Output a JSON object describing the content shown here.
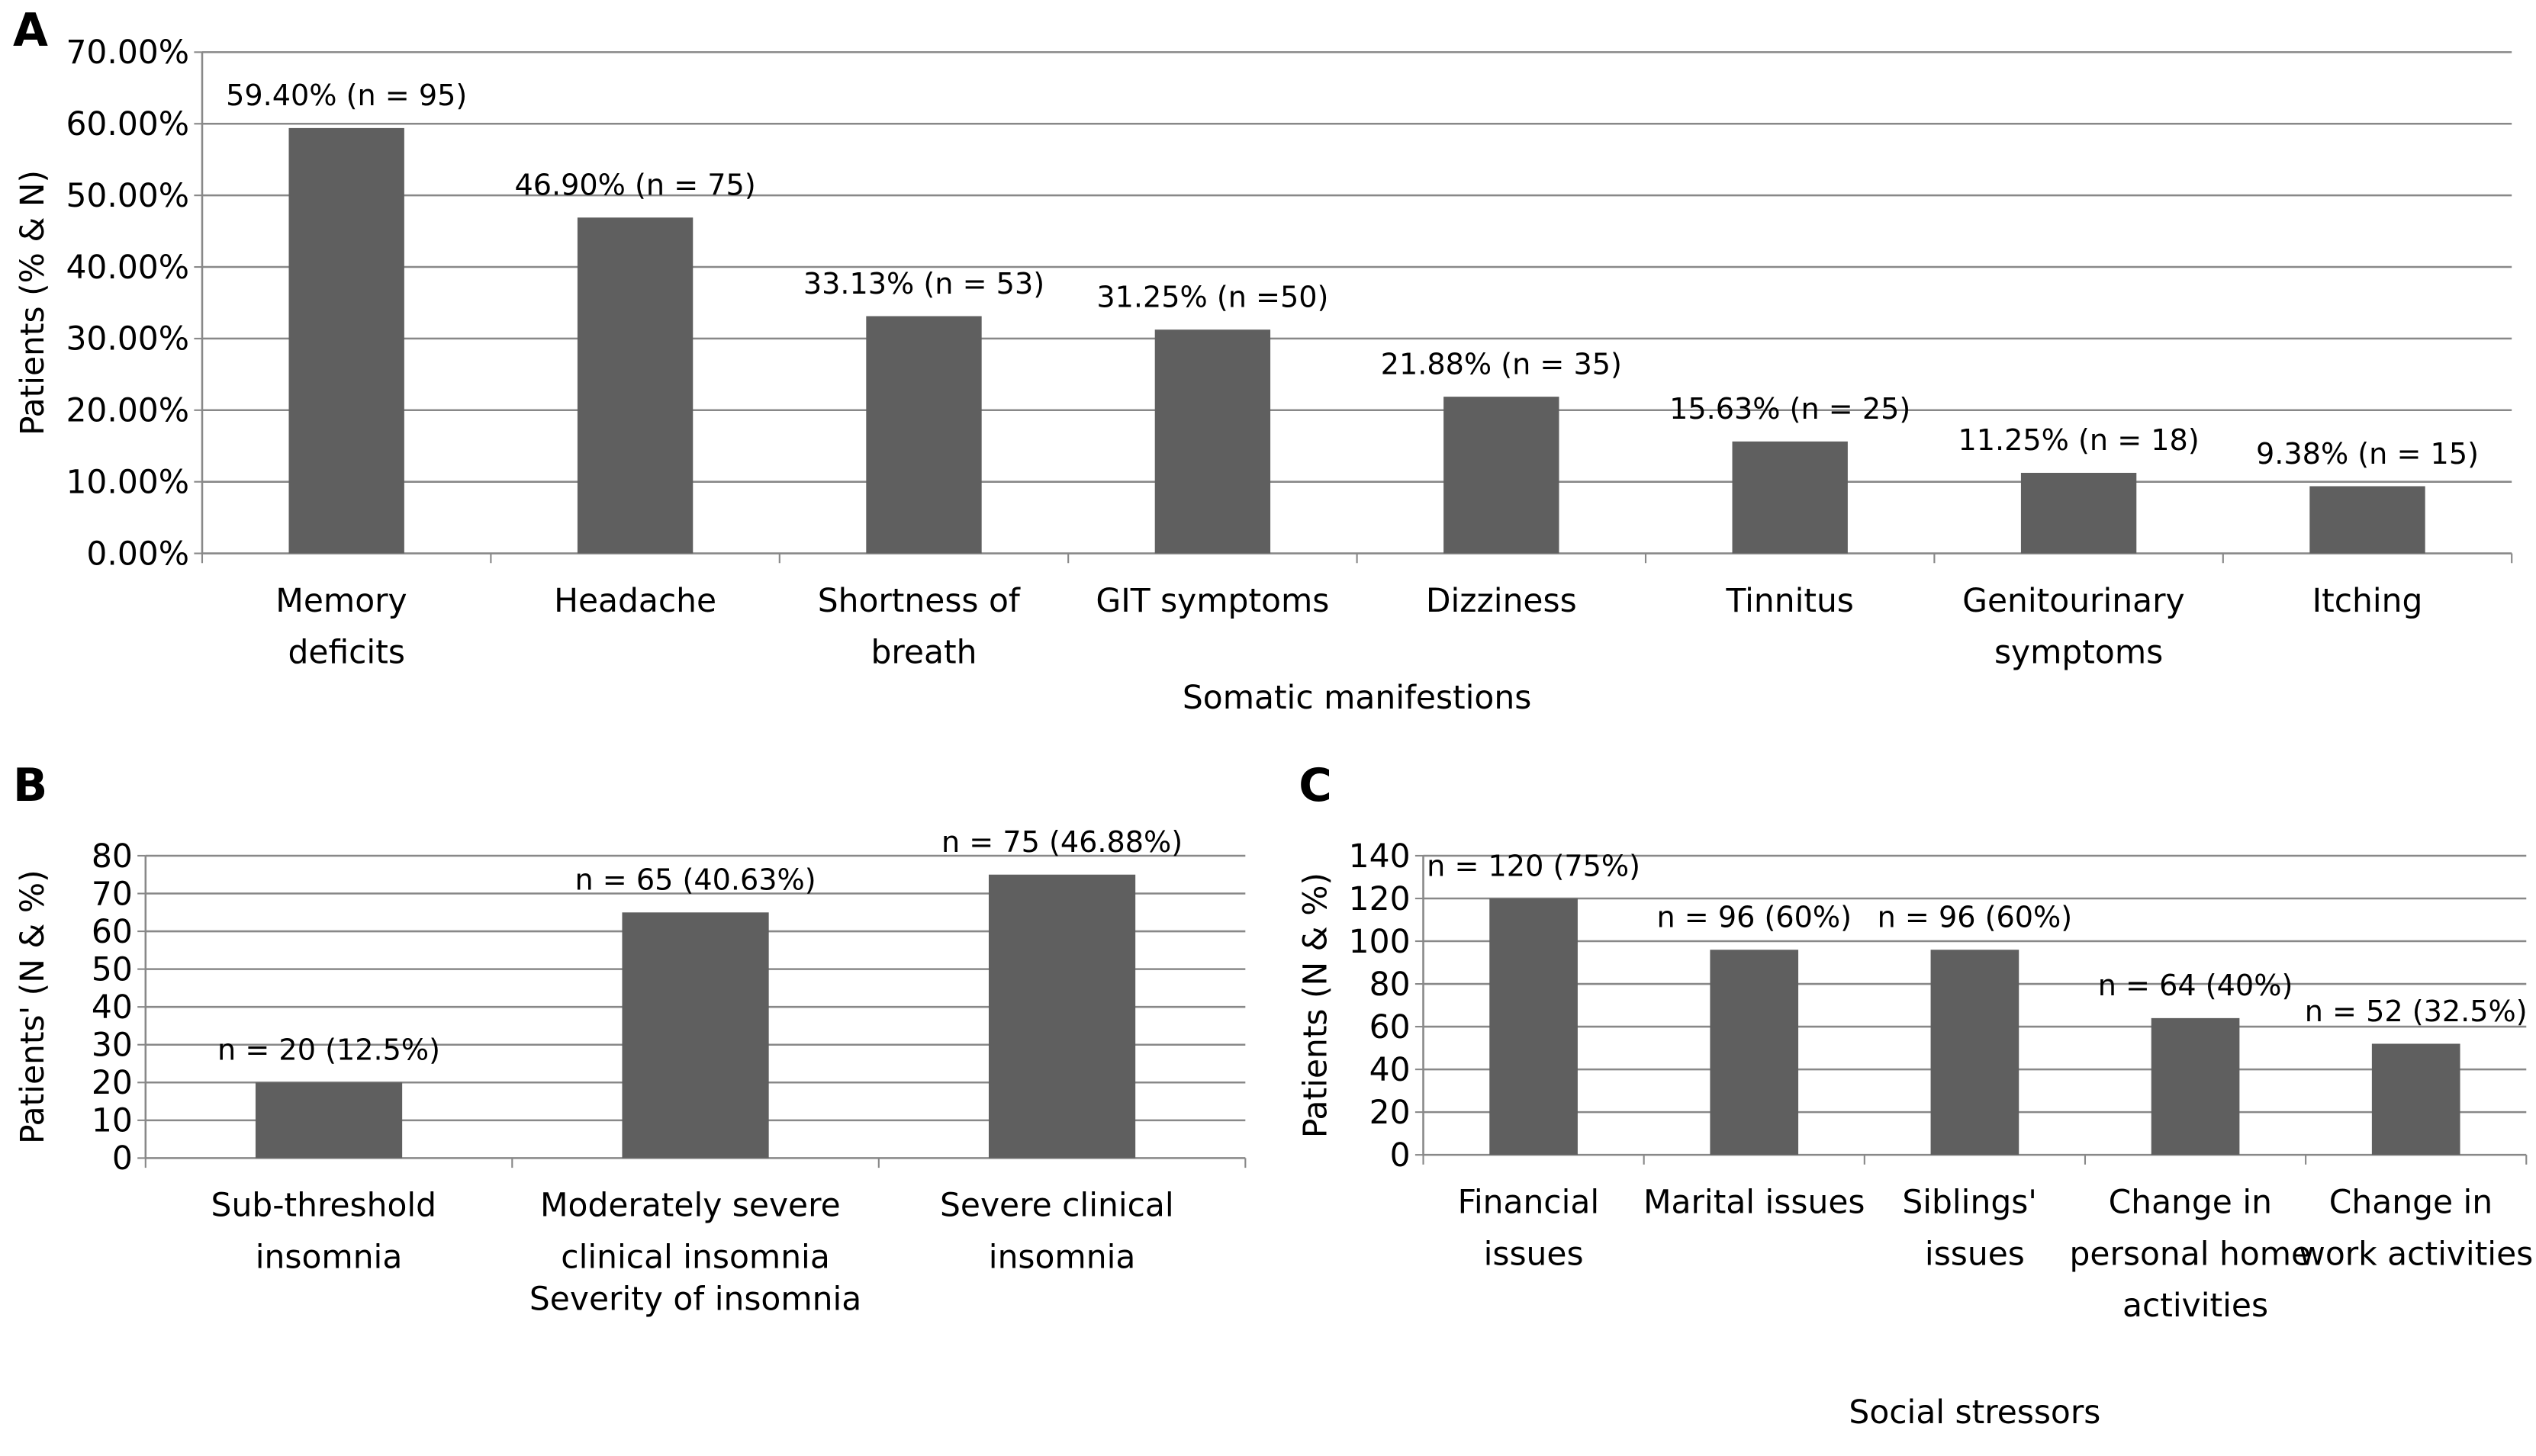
{
  "chart_data": [
    {
      "type": "bar",
      "panel": "A",
      "xlabel": "Somatic manifestions",
      "ylabel": "Patients (% & N)",
      "categories": [
        "Memory deficits",
        "Headache",
        "Shortness of breath",
        "GIT symptoms",
        "Dizziness",
        "Tinnitus",
        "Genitourinary symptoms",
        "Itching"
      ],
      "values": [
        59.4,
        46.9,
        33.13,
        31.25,
        21.88,
        15.63,
        11.25,
        9.38
      ],
      "value_labels": [
        "59.40% (n = 95)",
        "46.90% (n = 75)",
        "33.13% (n = 53)",
        "31.25% (n =50)",
        "21.88% (n = 35)",
        "15.63% (n = 25)",
        "11.25% (n = 18)",
        "9.38% (n = 15)"
      ],
      "color": "#5f5f5f",
      "ylim": [
        0,
        70
      ],
      "yticks": [
        {
          "value": 0,
          "label": "0.00%"
        },
        {
          "value": 10,
          "label": "10.00%"
        },
        {
          "value": 20,
          "label": "20.00%"
        },
        {
          "value": 30,
          "label": "30.00%"
        },
        {
          "value": 40,
          "label": "40.00%"
        },
        {
          "value": 50,
          "label": "50.00%"
        },
        {
          "value": 60,
          "label": "60.00%"
        },
        {
          "value": 70,
          "label": "70.00%"
        }
      ],
      "grid": true
    },
    {
      "type": "bar",
      "panel": "B",
      "xlabel": "Severity of insomnia",
      "ylabel": "Patients' (N & %)",
      "categories": [
        "Sub-threshold insomnia",
        "Moderately severe clinical insomnia",
        "Severe clinical insomnia"
      ],
      "values": [
        20,
        65,
        75
      ],
      "value_labels": [
        "n = 20 (12.5%)",
        "n = 65 (40.63%)",
        "n = 75 (46.88%)"
      ],
      "color": "#5f5f5f",
      "ylim": [
        0,
        80
      ],
      "yticks": [
        0,
        10,
        20,
        30,
        40,
        50,
        60,
        70,
        80
      ],
      "grid": true
    },
    {
      "type": "bar",
      "panel": "C",
      "xlabel": "Social stressors",
      "ylabel": "Patients (N & %)",
      "categories": [
        "Financial issues",
        "Marital issues",
        "Siblings' issues",
        "Change in personal home activities",
        "Change in work activities"
      ],
      "values": [
        120,
        96,
        96,
        64,
        52
      ],
      "value_labels": [
        "n = 120 (75%)",
        "n = 96 (60%)",
        "n = 96 (60%)",
        "n = 64 (40%)",
        "n = 52 (32.5%)"
      ],
      "color": "#5f5f5f",
      "ylim": [
        0,
        140
      ],
      "yticks": [
        0,
        20,
        40,
        60,
        80,
        100,
        120,
        140
      ],
      "grid": true
    }
  ]
}
